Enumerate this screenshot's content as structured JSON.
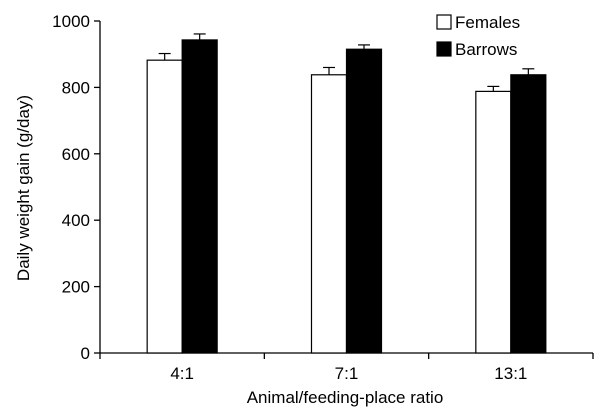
{
  "chart_data": {
    "type": "bar",
    "categories": [
      "4:1",
      "7:1",
      "13:1"
    ],
    "series": [
      {
        "name": "Females",
        "values": [
          882,
          838,
          788
        ],
        "errors": [
          20,
          22,
          15
        ],
        "color": "#ffffff"
      },
      {
        "name": "Barrows",
        "values": [
          943,
          915,
          838
        ],
        "errors": [
          18,
          13,
          18
        ],
        "color": "#000000"
      }
    ],
    "title": "",
    "xlabel": "Animal/feeding-place ratio",
    "ylabel": "Daily weight gain (g/day)",
    "ylim": [
      0,
      1000
    ],
    "yticks": [
      "0",
      "200",
      "400",
      "600",
      "800",
      "1000"
    ],
    "grid": false,
    "legend_position": "top-right"
  }
}
